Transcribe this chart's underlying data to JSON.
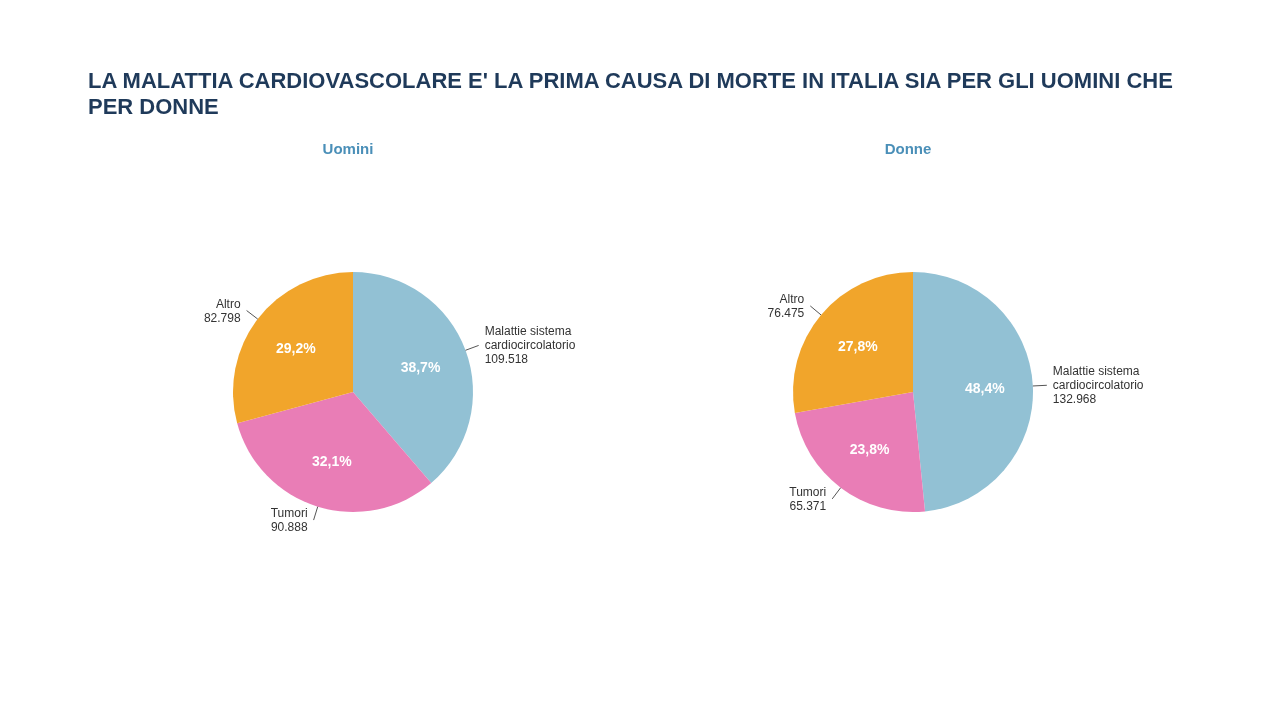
{
  "chart_data": [
    {
      "type": "pie",
      "title": "LA MALATTIA CARDIOVASCOLARE E'  LA PRIMA CAUSA DI MORTE IN ITALIA SIA PER GLI UOMINI CHE PER DONNE",
      "subtitle": "Uomini",
      "categories": [
        "Malattie sistema cardiocircolatorio",
        "Tumori",
        "Altro"
      ],
      "values": [
        38.7,
        32.1,
        29.2
      ],
      "value_labels": [
        "38,7%",
        "32,1%",
        "29,2%"
      ],
      "annotations": [
        "109.518",
        "90.888",
        "82.798"
      ],
      "colors": [
        "#92c1d4",
        "#e97db6",
        "#f1a52b"
      ]
    },
    {
      "type": "pie",
      "subtitle": "Donne",
      "categories": [
        "Malattie sistema cardiocircolatorio",
        "Tumori",
        "Altro"
      ],
      "values": [
        48.4,
        23.8,
        27.8
      ],
      "value_labels": [
        "48,4%",
        "23,8%",
        "27,8%"
      ],
      "annotations": [
        "132.968",
        "65.371",
        "76.475"
      ],
      "colors": [
        "#92c1d4",
        "#e97db6",
        "#f1a52b"
      ]
    }
  ]
}
